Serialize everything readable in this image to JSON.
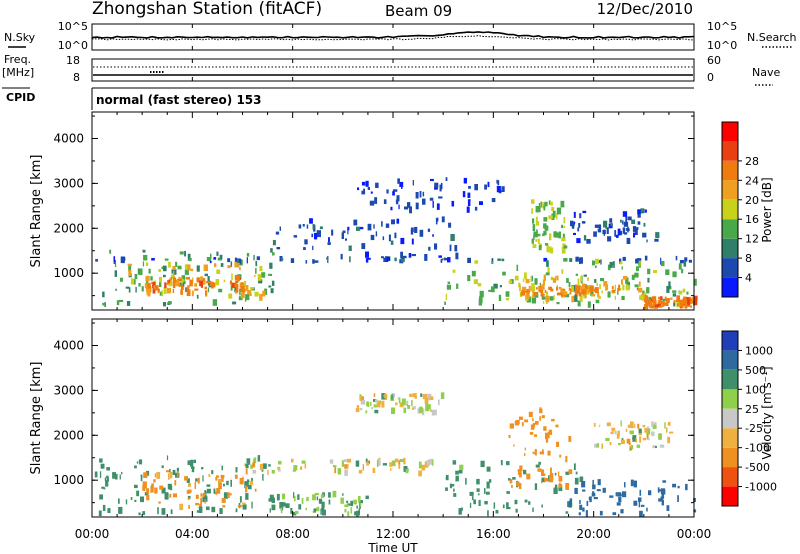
{
  "header": {
    "station": "Zhongshan Station (fitACF)",
    "beam": "Beam 09",
    "date": "12/Dec/2010"
  },
  "top_panels": {
    "nsky_label": "N.Sky",
    "nsky_ticks": [
      "10^5",
      "10^0"
    ],
    "nsearch_label": "N.Search",
    "nsearch_ticks": [
      "10^5",
      "10^0"
    ],
    "freq_label": "Freq.",
    "freq_unit": "[MHz]",
    "freq_ticks": [
      "18",
      "8"
    ],
    "nave_label": "Nave",
    "nave_ticks": [
      "60",
      "0"
    ],
    "cpid_label": "CPID",
    "cpid_text": "normal (fast stereo) 153"
  },
  "chart_data": [
    {
      "type": "heatmap",
      "name": "power",
      "xlabel": "Time UT",
      "ylabel": "Slant Range [km]",
      "x_ticks": [
        "00:00",
        "04:00",
        "08:00",
        "12:00",
        "16:00",
        "20:00",
        "00:00"
      ],
      "xlim_hours": [
        0,
        24
      ],
      "y_ticks": [
        1000,
        2000,
        3000,
        4000
      ],
      "ylim": [
        180,
        4590
      ],
      "colorbar": {
        "label": "Power [dB]",
        "ticks": [
          4,
          8,
          12,
          16,
          20,
          24,
          28
        ],
        "colors": [
          "#0a1aff",
          "#1b49b0",
          "#2f7f6a",
          "#48a84a",
          "#c8d21b",
          "#f0a020",
          "#f07c10",
          "#e84010",
          "#ff0000"
        ]
      },
      "regions": [
        {
          "t0": 0.0,
          "t1": 7.2,
          "r0": 300,
          "r1": 1500,
          "v": 12
        },
        {
          "t0": 1.0,
          "t1": 6.8,
          "r0": 450,
          "r1": 1200,
          "v": 20
        },
        {
          "t0": 2.0,
          "t1": 6.0,
          "r0": 550,
          "r1": 900,
          "v": 26
        },
        {
          "t0": 0.0,
          "t1": 24.0,
          "r0": 1250,
          "r1": 1340,
          "v": 6
        },
        {
          "t0": 7.0,
          "t1": 14.5,
          "r0": 1350,
          "r1": 2200,
          "v": 6
        },
        {
          "t0": 10.5,
          "t1": 16.5,
          "r0": 2400,
          "r1": 3100,
          "v": 5
        },
        {
          "t0": 14.0,
          "t1": 24.0,
          "r0": 300,
          "r1": 1300,
          "v": 14
        },
        {
          "t0": 16.5,
          "t1": 22.0,
          "r0": 400,
          "r1": 900,
          "v": 20
        },
        {
          "t0": 17.0,
          "t1": 21.0,
          "r0": 500,
          "r1": 700,
          "v": 25
        },
        {
          "t0": 17.5,
          "t1": 18.8,
          "r0": 1500,
          "r1": 2600,
          "v": 16
        },
        {
          "t0": 19.0,
          "t1": 22.5,
          "r0": 1700,
          "r1": 2400,
          "v": 6
        },
        {
          "t0": 22.0,
          "t1": 24.0,
          "r0": 250,
          "r1": 450,
          "v": 26
        }
      ]
    },
    {
      "type": "heatmap",
      "name": "velocity",
      "xlabel": "Time UT",
      "ylabel": "Slant Range [km]",
      "x_ticks": [
        "00:00",
        "04:00",
        "08:00",
        "12:00",
        "16:00",
        "20:00",
        "00:00"
      ],
      "xlim_hours": [
        0,
        24
      ],
      "y_ticks": [
        1000,
        2000,
        3000,
        4000
      ],
      "ylim": [
        180,
        4590
      ],
      "colorbar": {
        "label": "Velocity [m s⁻¹]",
        "ticks": [
          "1000",
          "500",
          "100",
          "25",
          "-25",
          "-100",
          "-500",
          "-1000"
        ],
        "colors": [
          "#1f3fb8",
          "#2e6aa0",
          "#3f8f6a",
          "#8fcf4a",
          "#c8c8c8",
          "#f0b040",
          "#f09020",
          "#f05010",
          "#ff0000"
        ]
      },
      "regions": [
        {
          "t0": 0.0,
          "t1": 7.2,
          "r0": 250,
          "r1": 1500,
          "v": 300
        },
        {
          "t0": 2.0,
          "t1": 6.5,
          "r0": 400,
          "r1": 1200,
          "v": -200
        },
        {
          "t0": 6.0,
          "t1": 14.0,
          "r0": 1150,
          "r1": 1450,
          "v": 0
        },
        {
          "t0": 7.0,
          "t1": 11.0,
          "r0": 250,
          "r1": 700,
          "v": 150
        },
        {
          "t0": 10.5,
          "t1": 14.0,
          "r0": 2500,
          "r1": 2900,
          "v": 0
        },
        {
          "t0": 14.0,
          "t1": 19.5,
          "r0": 250,
          "r1": 1400,
          "v": 200
        },
        {
          "t0": 16.5,
          "t1": 19.0,
          "r0": 800,
          "r1": 2600,
          "v": -300
        },
        {
          "t0": 19.0,
          "t1": 24.0,
          "r0": 250,
          "r1": 1000,
          "v": 800
        },
        {
          "t0": 20.0,
          "t1": 23.0,
          "r0": 1700,
          "r1": 2300,
          "v": 0
        }
      ]
    }
  ]
}
